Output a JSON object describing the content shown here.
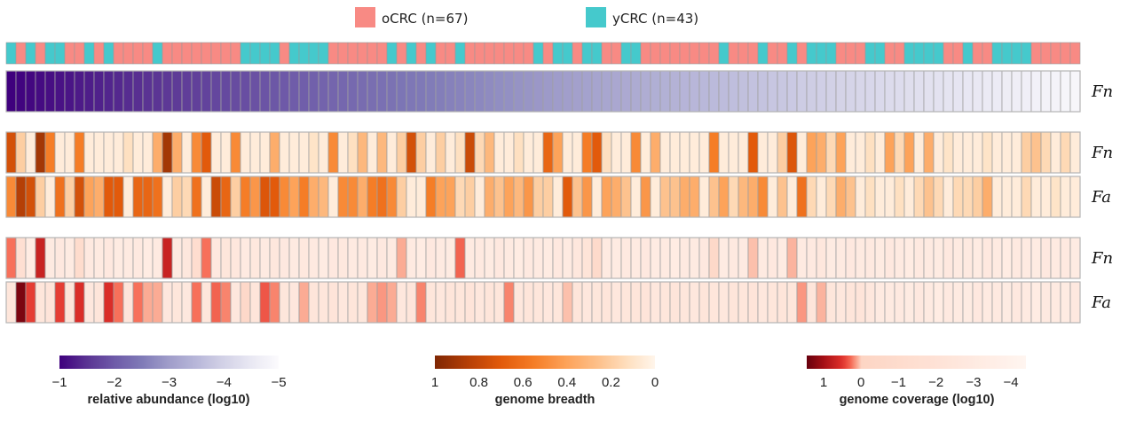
{
  "chart_data": {
    "type": "heatmap",
    "legend": {
      "placement": "top-center",
      "entries": [
        {
          "key": "oCRC",
          "label": "oCRC (n=67)",
          "color": "#f88a84"
        },
        {
          "key": "yCRC",
          "label": "yCRC (n=43)",
          "color": "#45c9cc"
        }
      ]
    },
    "groups": [
      "yCRC",
      "oCRC",
      "yCRC",
      "oCRC",
      "yCRC",
      "yCRC",
      "oCRC",
      "oCRC",
      "yCRC",
      "oCRC",
      "yCRC",
      "oCRC",
      "oCRC",
      "oCRC",
      "oCRC",
      "yCRC",
      "oCRC",
      "oCRC",
      "oCRC",
      "oCRC",
      "oCRC",
      "oCRC",
      "oCRC",
      "oCRC",
      "yCRC",
      "yCRC",
      "yCRC",
      "yCRC",
      "oCRC",
      "yCRC",
      "yCRC",
      "yCRC",
      "yCRC",
      "oCRC",
      "oCRC",
      "oCRC",
      "oCRC",
      "oCRC",
      "oCRC",
      "yCRC",
      "oCRC",
      "yCRC",
      "oCRC",
      "yCRC",
      "oCRC",
      "oCRC",
      "yCRC",
      "oCRC",
      "oCRC",
      "oCRC",
      "oCRC",
      "oCRC",
      "oCRC",
      "oCRC",
      "yCRC",
      "oCRC",
      "yCRC",
      "yCRC",
      "oCRC",
      "yCRC",
      "yCRC",
      "oCRC",
      "oCRC",
      "yCRC",
      "yCRC",
      "oCRC",
      "oCRC",
      "oCRC",
      "oCRC",
      "oCRC",
      "oCRC",
      "oCRC",
      "oCRC",
      "yCRC",
      "oCRC",
      "oCRC",
      "oCRC",
      "yCRC",
      "oCRC",
      "oCRC",
      "yCRC",
      "oCRC",
      "yCRC",
      "yCRC",
      "yCRC",
      "oCRC",
      "oCRC",
      "oCRC",
      "yCRC",
      "yCRC",
      "oCRC",
      "oCRC",
      "yCRC",
      "yCRC",
      "yCRC",
      "yCRC",
      "oCRC",
      "oCRC",
      "yCRC",
      "oCRC",
      "oCRC",
      "yCRC",
      "yCRC",
      "yCRC",
      "yCRC",
      "oCRC",
      "oCRC",
      "oCRC",
      "oCRC",
      "oCRC"
    ],
    "blocks": [
      {
        "id": "abundance",
        "scale": "abundance",
        "rows": [
          {
            "label": "Fn",
            "values": [
              -1.0,
              -1.04,
              -1.07,
              -1.11,
              -1.14,
              -1.18,
              -1.21,
              -1.25,
              -1.28,
              -1.32,
              -1.36,
              -1.39,
              -1.43,
              -1.46,
              -1.5,
              -1.53,
              -1.57,
              -1.6,
              -1.64,
              -1.67,
              -1.71,
              -1.75,
              -1.78,
              -1.82,
              -1.85,
              -1.89,
              -1.92,
              -1.96,
              -1.99,
              -2.03,
              -2.07,
              -2.1,
              -2.14,
              -2.17,
              -2.21,
              -2.24,
              -2.28,
              -2.31,
              -2.35,
              -2.38,
              -2.42,
              -2.46,
              -2.49,
              -2.53,
              -2.56,
              -2.6,
              -2.63,
              -2.67,
              -2.7,
              -2.74,
              -2.78,
              -2.81,
              -2.85,
              -2.88,
              -2.92,
              -2.95,
              -2.99,
              -3.02,
              -3.06,
              -3.09,
              -3.13,
              -3.17,
              -3.2,
              -3.24,
              -3.27,
              -3.31,
              -3.34,
              -3.38,
              -3.41,
              -3.45,
              -3.49,
              -3.52,
              -3.56,
              -3.59,
              -3.63,
              -3.66,
              -3.7,
              -3.73,
              -3.77,
              -3.8,
              -3.84,
              -3.88,
              -3.91,
              -3.95,
              -3.98,
              -4.02,
              -4.05,
              -4.09,
              -4.12,
              -4.16,
              -4.2,
              -4.23,
              -4.27,
              -4.3,
              -4.34,
              -4.37,
              -4.41,
              -4.44,
              -4.48,
              -4.51,
              -4.55,
              -4.59,
              -4.62,
              -4.66,
              -4.69,
              -4.73,
              -4.76,
              -4.8,
              -4.83,
              -4.87
            ]
          }
        ]
      },
      {
        "id": "breadth",
        "scale": "breadth",
        "rows": [
          {
            "label": "Fn",
            "values": [
              0.75,
              0.2,
              0.05,
              0.9,
              0.55,
              0.05,
              0.05,
              0.55,
              0.05,
              0.05,
              0.05,
              0.05,
              0.12,
              0.05,
              0.05,
              0.35,
              0.9,
              0.35,
              0.05,
              0.5,
              0.7,
              0.05,
              0.05,
              0.5,
              0.05,
              0.05,
              0.05,
              0.35,
              0.05,
              0.05,
              0.05,
              0.1,
              0.05,
              0.5,
              0.05,
              0.12,
              0.3,
              0.05,
              0.3,
              0.05,
              0.2,
              0.75,
              0.2,
              0.05,
              0.2,
              0.05,
              0.12,
              0.78,
              0.15,
              0.3,
              0.05,
              0.05,
              0.12,
              0.05,
              0.05,
              0.65,
              0.4,
              0.05,
              0.05,
              0.55,
              0.7,
              0.12,
              0.05,
              0.05,
              0.5,
              0.05,
              0.35,
              0.05,
              0.05,
              0.05,
              0.05,
              0.05,
              0.55,
              0.05,
              0.05,
              0.05,
              0.7,
              0.05,
              0.05,
              0.2,
              0.72,
              0.05,
              0.4,
              0.35,
              0.15,
              0.4,
              0.05,
              0.05,
              0.12,
              0.05,
              0.4,
              0.15,
              0.4,
              0.05,
              0.35,
              0.05,
              0.1,
              0.05,
              0.05,
              0.05,
              0.1,
              0.05,
              0.05,
              0.05,
              0.2,
              0.25,
              0.15,
              0.05,
              0.15,
              0.05
            ]
          },
          {
            "label": "Fa",
            "values": [
              0.5,
              0.85,
              0.75,
              0.2,
              0.05,
              0.6,
              0.2,
              0.75,
              0.4,
              0.35,
              0.7,
              0.7,
              0.05,
              0.65,
              0.65,
              0.6,
              0.05,
              0.2,
              0.15,
              0.6,
              0.05,
              0.78,
              0.65,
              0.2,
              0.55,
              0.45,
              0.72,
              0.7,
              0.5,
              0.4,
              0.55,
              0.35,
              0.3,
              0.05,
              0.5,
              0.5,
              0.35,
              0.55,
              0.6,
              0.5,
              0.2,
              0.05,
              0.05,
              0.55,
              0.4,
              0.4,
              0.15,
              0.2,
              0.05,
              0.35,
              0.25,
              0.4,
              0.3,
              0.45,
              0.2,
              0.2,
              0.05,
              0.7,
              0.25,
              0.45,
              0.05,
              0.4,
              0.35,
              0.25,
              0.05,
              0.45,
              0.05,
              0.25,
              0.25,
              0.35,
              0.35,
              0.05,
              0.25,
              0.4,
              0.15,
              0.3,
              0.35,
              0.5,
              0.05,
              0.25,
              0.05,
              0.6,
              0.15,
              0.05,
              0.15,
              0.35,
              0.25,
              0.05,
              0.12,
              0.05,
              0.05,
              0.12,
              0.05,
              0.15,
              0.25,
              0.15,
              0.05,
              0.15,
              0.15,
              0.2,
              0.35,
              0.05,
              0.05,
              0.05,
              0.15,
              0.05,
              0.05,
              0.1,
              0.05,
              0.05
            ]
          }
        ]
      },
      {
        "id": "coverage",
        "scale": "coverage",
        "rows": [
          {
            "label": "Fn",
            "values": [
              0.25,
              -1.5,
              -3.2,
              0.7,
              -3.0,
              -2.8,
              -3.1,
              -1.0,
              -2.9,
              -3.0,
              -2.8,
              -3.1,
              -3.0,
              -2.9,
              -3.2,
              -3.0,
              0.7,
              -2.9,
              -2.6,
              -1.2,
              0.25,
              -2.8,
              -2.5,
              -2.6,
              -3.0,
              -2.7,
              -3.0,
              -2.6,
              -2.8,
              -3.0,
              -2.7,
              -2.9,
              -3.1,
              -2.8,
              -2.7,
              -3.0,
              -2.9,
              -3.1,
              -2.8,
              -3.0,
              0.1,
              -3.0,
              -3.2,
              -2.8,
              -3.0,
              -3.1,
              0.3,
              -3.0,
              -2.9,
              -3.1,
              -2.8,
              -3.0,
              -3.2,
              -2.9,
              -3.0,
              -3.1,
              -2.8,
              -3.0,
              -2.6,
              -2.2,
              -0.8,
              -3.0,
              -3.1,
              -2.9,
              -3.0,
              -2.8,
              -3.1,
              -3.0,
              -3.2,
              -2.9,
              -3.0,
              -2.8,
              -0.6,
              -3.1,
              -2.9,
              -3.0,
              0.05,
              -3.0,
              -2.8,
              -3.1,
              0.08,
              -3.0,
              -2.9,
              -2.6,
              -3.1,
              -3.0,
              -2.8,
              -3.0,
              -2.9,
              -3.1,
              -2.8,
              -3.0,
              -3.2,
              -2.9,
              -3.0,
              -3.1,
              -2.8,
              -3.0,
              -2.9,
              -3.1,
              -2.8,
              -3.0,
              -3.2,
              -2.9,
              -3.0,
              -3.1,
              -2.8,
              -3.0,
              -2.9,
              -3.1
            ]
          },
          {
            "label": "Fa",
            "values": [
              -2.5,
              1.3,
              0.45,
              -2.5,
              -2.3,
              0.45,
              -2.4,
              0.55,
              -2.6,
              -2.4,
              0.55,
              0.25,
              -2.4,
              0.25,
              0.1,
              0.1,
              -2.6,
              -2.5,
              -2.7,
              0.25,
              -2.5,
              0.3,
              0.2,
              -2.6,
              -0.5,
              -2.4,
              0.35,
              0.2,
              -2.5,
              -2.6,
              0.1,
              -2.4,
              -2.5,
              -2.3,
              -2.6,
              -2.4,
              -2.5,
              0.1,
              0.15,
              0.1,
              -2.6,
              -2.4,
              0.2,
              -2.5,
              -2.6,
              -2.4,
              -2.5,
              -2.3,
              -2.6,
              -2.4,
              -2.5,
              0.2,
              -2.6,
              -2.4,
              -2.5,
              -2.6,
              -2.5,
              0.05,
              -2.4,
              -2.6,
              -2.5,
              -2.4,
              -2.6,
              -2.5,
              -2.4,
              -2.3,
              -2.6,
              -2.5,
              -2.4,
              -2.5,
              -2.6,
              -2.4,
              -2.5,
              -2.6,
              -2.4,
              -2.5,
              -2.3,
              -2.6,
              -2.5,
              -2.4,
              -2.5,
              0.15,
              -2.4,
              0.08,
              -2.5,
              -2.6,
              -2.4,
              -2.3,
              -2.6,
              -3.0,
              -3.0,
              -2.9,
              -3.1,
              -2.8,
              -3.0,
              -3.2,
              -2.9,
              -3.0,
              -3.1,
              -2.8,
              -3.0,
              -2.9,
              -3.1,
              -2.8,
              -3.0,
              -3.2,
              -2.9,
              -3.0,
              -3.1,
              -2.8
            ]
          }
        ]
      }
    ],
    "scales": {
      "abundance": {
        "title": "relative abundance (log10)",
        "range": [
          -1,
          -5
        ],
        "ticks": [
          "−1",
          "−2",
          "−3",
          "−4",
          "−5"
        ],
        "tick_values": [
          -1,
          -2,
          -3,
          -4,
          -5
        ],
        "stops": [
          [
            -1,
            "#3f007d"
          ],
          [
            -1.5,
            "#5a3393"
          ],
          [
            -2,
            "#6e5aa8"
          ],
          [
            -2.5,
            "#7f7ab7"
          ],
          [
            -3,
            "#a09dca"
          ],
          [
            -3.5,
            "#b8b7d9"
          ],
          [
            -4,
            "#d3d2e7"
          ],
          [
            -4.5,
            "#e9e8f3"
          ],
          [
            -5,
            "#fcfbfd"
          ]
        ]
      },
      "breadth": {
        "title": "genome breadth",
        "range": [
          1,
          0
        ],
        "ticks": [
          "1",
          "0.8",
          "0.6",
          "0.4",
          "0.2",
          "0"
        ],
        "tick_values": [
          1,
          0.8,
          0.6,
          0.4,
          0.2,
          0
        ],
        "stops": [
          [
            1,
            "#7f2704"
          ],
          [
            0.85,
            "#b53f06"
          ],
          [
            0.7,
            "#e25a0b"
          ],
          [
            0.55,
            "#f57d26"
          ],
          [
            0.4,
            "#fda35a"
          ],
          [
            0.25,
            "#fdc28e"
          ],
          [
            0.12,
            "#fee0c1"
          ],
          [
            0,
            "#fff5eb"
          ]
        ]
      },
      "coverage": {
        "title": "genome coverage (log10)",
        "range": [
          1.45,
          -4.4
        ],
        "ticks": [
          "1",
          "0",
          "−1",
          "−2",
          "−3",
          "−4"
        ],
        "tick_values": [
          1,
          0,
          -1,
          -2,
          -3,
          -4
        ],
        "stops": [
          [
            1.45,
            "#67000d"
          ],
          [
            1,
            "#a50f15"
          ],
          [
            0.5,
            "#e0302a"
          ],
          [
            0.25,
            "#f7705a"
          ],
          [
            0.1,
            "#fbab94"
          ],
          [
            0,
            "#fdd5c4"
          ],
          [
            -2,
            "#fee2d6"
          ],
          [
            -4.4,
            "#fff5f0"
          ]
        ]
      }
    }
  }
}
